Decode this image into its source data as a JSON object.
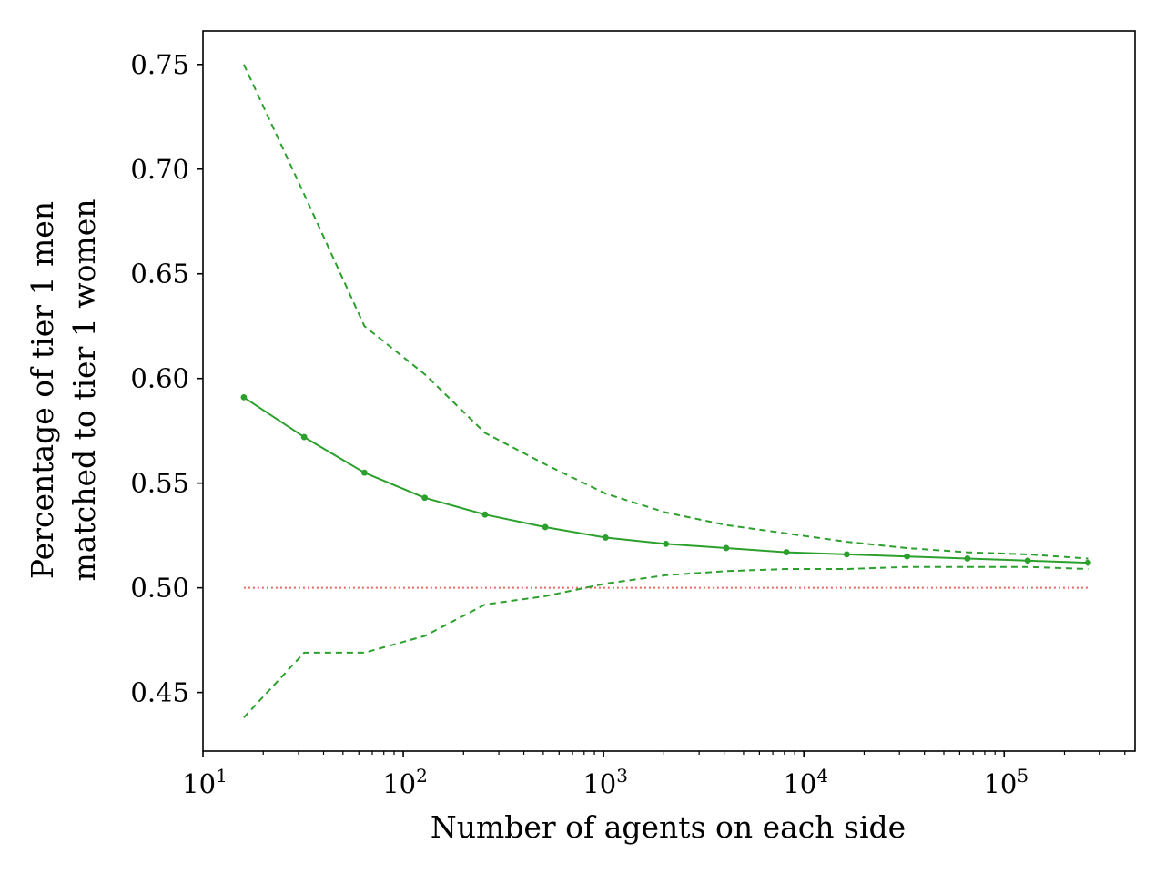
{
  "chart_data": {
    "type": "line",
    "title": "",
    "xlabel": "Number of agents on each side",
    "ylabel_lines": [
      "Percentage of tier 1 men",
      "matched to tier 1 women"
    ],
    "xscale": "log",
    "xlim": [
      10,
      450000
    ],
    "ylim": [
      0.422,
      0.766
    ],
    "grid": false,
    "xticks": [
      {
        "value": 10,
        "base": "10",
        "exp": "1"
      },
      {
        "value": 100,
        "base": "10",
        "exp": "2"
      },
      {
        "value": 1000,
        "base": "10",
        "exp": "3"
      },
      {
        "value": 10000,
        "base": "10",
        "exp": "4"
      },
      {
        "value": 100000,
        "base": "10",
        "exp": "5"
      }
    ],
    "yticks": [
      0.45,
      0.5,
      0.55,
      0.6,
      0.65,
      0.7,
      0.75
    ],
    "ytick_labels": [
      "0.45",
      "0.50",
      "0.55",
      "0.60",
      "0.65",
      "0.70",
      "0.75"
    ],
    "x": [
      16,
      32,
      64,
      128,
      256,
      512,
      1024,
      2048,
      4096,
      8192,
      16384,
      32768,
      65536,
      131072,
      262144
    ],
    "series": [
      {
        "role": "mean",
        "style": "solid",
        "markers": true,
        "color": "#2ca02c",
        "values": [
          0.591,
          0.572,
          0.555,
          0.543,
          0.535,
          0.529,
          0.524,
          0.521,
          0.519,
          0.517,
          0.516,
          0.515,
          0.514,
          0.513,
          0.512
        ]
      },
      {
        "role": "upper",
        "style": "dashed",
        "markers": false,
        "color": "#2ca02c",
        "values": [
          0.75,
          0.688,
          0.625,
          0.602,
          0.574,
          0.559,
          0.545,
          0.536,
          0.53,
          0.526,
          0.522,
          0.519,
          0.517,
          0.516,
          0.514
        ]
      },
      {
        "role": "lower",
        "style": "dashed",
        "markers": false,
        "color": "#2ca02c",
        "values": [
          0.438,
          0.469,
          0.469,
          0.477,
          0.492,
          0.496,
          0.502,
          0.506,
          0.508,
          0.509,
          0.509,
          0.51,
          0.51,
          0.51,
          0.509
        ]
      }
    ],
    "reference_line": {
      "y": 0.5,
      "style": "dotted",
      "color": "#e8695f"
    }
  }
}
